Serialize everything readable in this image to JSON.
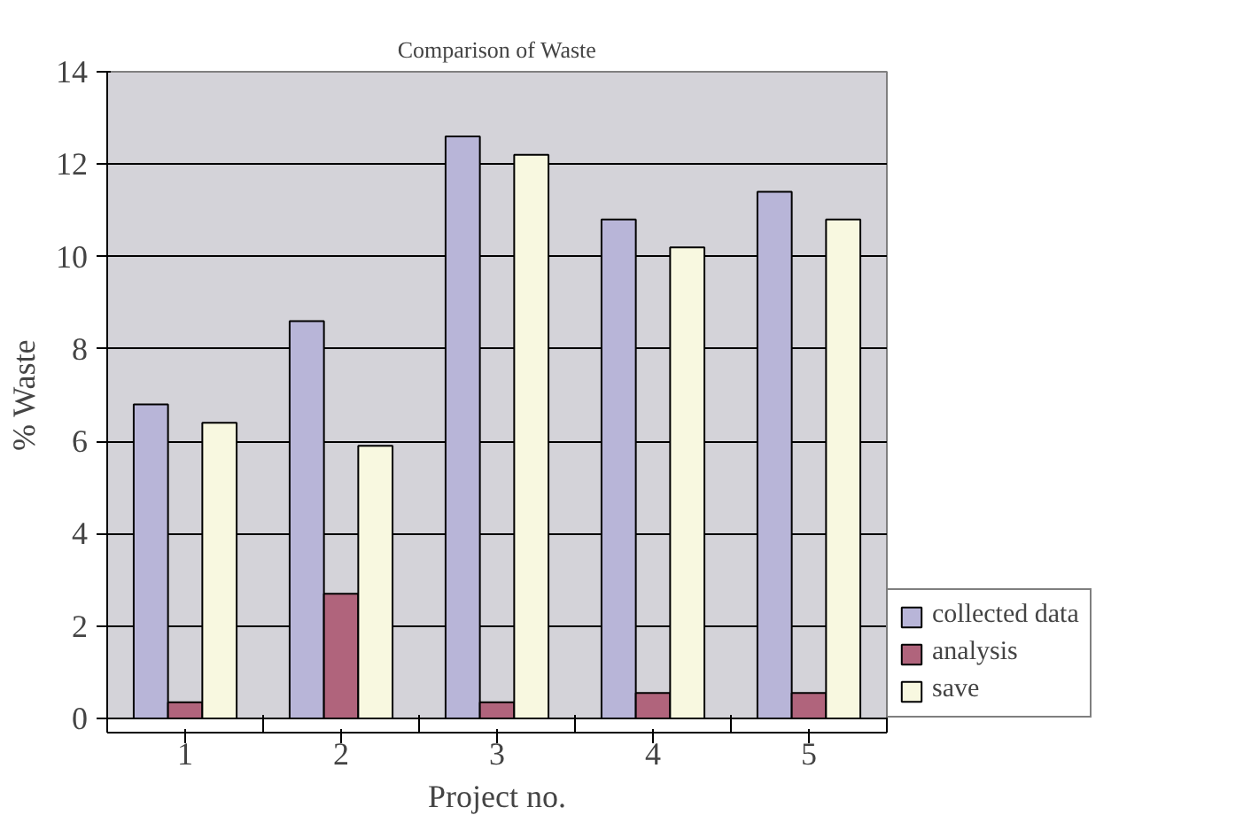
{
  "chart_data": {
    "type": "bar",
    "title": "Comparison of Waste",
    "xlabel": "Project no.",
    "ylabel": "% Waste",
    "categories": [
      "1",
      "2",
      "3",
      "4",
      "5"
    ],
    "series": [
      {
        "name": "collected data",
        "color": "#b8b5d8",
        "values": [
          6.8,
          8.6,
          12.6,
          10.8,
          11.4
        ]
      },
      {
        "name": "analysis",
        "color": "#b0647c",
        "values": [
          0.35,
          2.7,
          0.35,
          0.55,
          0.55
        ]
      },
      {
        "name": "save",
        "color": "#f8f8e0",
        "values": [
          6.4,
          5.9,
          12.2,
          10.2,
          10.8
        ]
      }
    ],
    "ylim": [
      0,
      14
    ],
    "yticks": [
      0,
      2,
      4,
      6,
      8,
      10,
      12,
      14
    ],
    "grid": "y",
    "legend": "bottom right"
  }
}
